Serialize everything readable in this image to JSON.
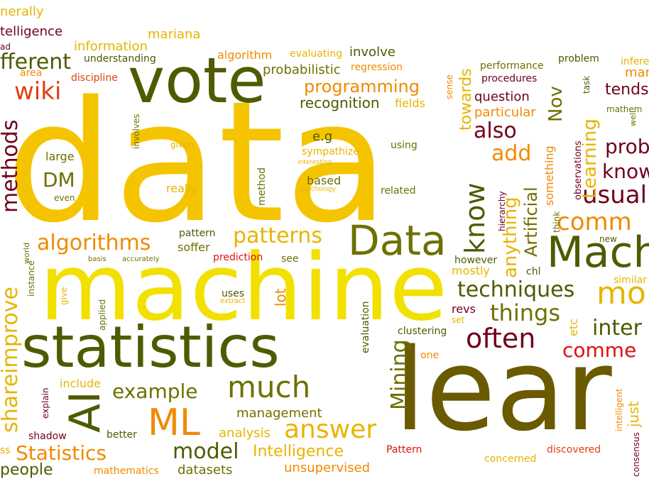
{
  "colors": {
    "yellow": "#f5c400",
    "bright_yellow": "#f2e000",
    "gold": "#e8b400",
    "orange": "#f08a00",
    "dark_orange": "#e06000",
    "red_orange": "#e04010",
    "olive": "#6e7000",
    "dark_olive": "#505a00",
    "brown": "#6a5a00",
    "maroon": "#70001c",
    "red": "#e01010"
  },
  "words": [
    {
      "id": "data",
      "text": "data"
    },
    {
      "id": "machine",
      "text": "machine"
    },
    {
      "id": "statistics",
      "text": "statistics"
    },
    {
      "id": "lear",
      "text": "lear"
    },
    {
      "id": "vote",
      "text": "vote"
    },
    {
      "id": "data2",
      "text": "Data"
    },
    {
      "id": "mach",
      "text": "Mach"
    },
    {
      "id": "ml",
      "text": "ML"
    },
    {
      "id": "ai",
      "text": "AI"
    },
    {
      "id": "much",
      "text": "much"
    },
    {
      "id": "answer",
      "text": "answer"
    },
    {
      "id": "patterns",
      "text": "patterns"
    },
    {
      "id": "algorithms",
      "text": "algorithms"
    },
    {
      "id": "techniques",
      "text": "techniques"
    },
    {
      "id": "often",
      "text": "often"
    },
    {
      "id": "things",
      "text": "things"
    },
    {
      "id": "example",
      "text": "example"
    },
    {
      "id": "model",
      "text": "model"
    },
    {
      "id": "mining",
      "text": "Mining"
    },
    {
      "id": "know",
      "text": "know"
    },
    {
      "id": "programming",
      "text": "programming"
    },
    {
      "id": "wiki",
      "text": "wiki"
    },
    {
      "id": "different",
      "text": "fferent"
    },
    {
      "id": "shareimprove",
      "text": "shareimprove"
    },
    {
      "id": "methods",
      "text": "methods"
    },
    {
      "id": "statistics2",
      "text": "Statistics"
    },
    {
      "id": "intelligence",
      "text": "Intelligence"
    },
    {
      "id": "people",
      "text": "people"
    },
    {
      "id": "unsupervised",
      "text": "unsupervised"
    },
    {
      "id": "datasets",
      "text": "datasets"
    },
    {
      "id": "mathematics",
      "text": "mathematics"
    },
    {
      "id": "management",
      "text": "management"
    },
    {
      "id": "analysis",
      "text": "analysis"
    },
    {
      "id": "dm",
      "text": "DM"
    },
    {
      "id": "add",
      "text": "add"
    },
    {
      "id": "also",
      "text": "also"
    },
    {
      "id": "usual",
      "text": "usual"
    },
    {
      "id": "comm",
      "text": "comm"
    },
    {
      "id": "comme",
      "text": "comme"
    },
    {
      "id": "inter",
      "text": "inter"
    },
    {
      "id": "mo",
      "text": "mo"
    },
    {
      "id": "prob",
      "text": "prob"
    },
    {
      "id": "know2",
      "text": "know"
    },
    {
      "id": "tends",
      "text": "tends"
    },
    {
      "id": "learning",
      "text": "Learning"
    },
    {
      "id": "artificial",
      "text": "Artificial"
    },
    {
      "id": "anything",
      "text": "anything"
    },
    {
      "id": "towards",
      "text": "towards"
    },
    {
      "id": "recognition",
      "text": "recognition"
    },
    {
      "id": "probabilistic",
      "text": "probabilistic"
    },
    {
      "id": "information",
      "text": "information"
    },
    {
      "id": "mariana",
      "text": "mariana"
    },
    {
      "id": "algorithm",
      "text": "algorithm"
    },
    {
      "id": "involve",
      "text": "involve"
    },
    {
      "id": "generally",
      "text": "nerally"
    },
    {
      "id": "intelligence2",
      "text": "telligence"
    },
    {
      "id": "question",
      "text": "question"
    },
    {
      "id": "particular",
      "text": "particular"
    },
    {
      "id": "nov",
      "text": "Nov"
    },
    {
      "id": "revs",
      "text": "revs"
    },
    {
      "id": "include",
      "text": "include"
    },
    {
      "id": "lot",
      "text": "lot"
    },
    {
      "id": "uses",
      "text": "uses"
    },
    {
      "id": "soffer",
      "text": "soffer"
    },
    {
      "id": "pattern",
      "text": "pattern"
    },
    {
      "id": "really",
      "text": "really"
    },
    {
      "id": "large",
      "text": "large"
    },
    {
      "id": "eg",
      "text": "e.g"
    },
    {
      "id": "based",
      "text": "based"
    },
    {
      "id": "related",
      "text": "related"
    },
    {
      "id": "using",
      "text": "using"
    },
    {
      "id": "method",
      "text": "method"
    },
    {
      "id": "sympathize",
      "text": "sympathize"
    },
    {
      "id": "fields",
      "text": "fields"
    },
    {
      "id": "given",
      "text": "given"
    },
    {
      "id": "involves",
      "text": "involves"
    },
    {
      "id": "even",
      "text": "even"
    },
    {
      "id": "interesting",
      "text": "interesting"
    },
    {
      "id": "psychology",
      "text": "psychology"
    },
    {
      "id": "evaluating",
      "text": "evaluating"
    },
    {
      "id": "regression",
      "text": "regression"
    },
    {
      "id": "understanding",
      "text": "understanding"
    },
    {
      "id": "discipline",
      "text": "discipline"
    },
    {
      "id": "area",
      "text": "area"
    },
    {
      "id": "sense",
      "text": "sense"
    },
    {
      "id": "performance",
      "text": "performance"
    },
    {
      "id": "procedures",
      "text": "procedures"
    },
    {
      "id": "problem",
      "text": "problem"
    },
    {
      "id": "task",
      "text": "task"
    },
    {
      "id": "infer",
      "text": "infere"
    },
    {
      "id": "mar",
      "text": "mar"
    },
    {
      "id": "mathem",
      "text": "mathem"
    },
    {
      "id": "well",
      "text": "well"
    },
    {
      "id": "something",
      "text": "something"
    },
    {
      "id": "observations",
      "text": "observations"
    },
    {
      "id": "hierarchy",
      "text": "hierarchy"
    },
    {
      "id": "think",
      "text": "think"
    },
    {
      "id": "new",
      "text": "new"
    },
    {
      "id": "similar",
      "text": "similar"
    },
    {
      "id": "however",
      "text": "however"
    },
    {
      "id": "mostly",
      "text": "mostly"
    },
    {
      "id": "chl",
      "text": "chl"
    },
    {
      "id": "etc",
      "text": "etc"
    },
    {
      "id": "set",
      "text": "set"
    },
    {
      "id": "clustering",
      "text": "clustering"
    },
    {
      "id": "one",
      "text": "one"
    },
    {
      "id": "evaluation",
      "text": "evaluation"
    },
    {
      "id": "pattern2",
      "text": "Pattern"
    },
    {
      "id": "concerned",
      "text": "concerned"
    },
    {
      "id": "discovered",
      "text": "discovered"
    },
    {
      "id": "intelligent",
      "text": "intelligent"
    },
    {
      "id": "just",
      "text": "just"
    },
    {
      "id": "consensus",
      "text": "consensus"
    },
    {
      "id": "better",
      "text": "better"
    },
    {
      "id": "shadow",
      "text": "shadow"
    },
    {
      "id": "explain",
      "text": "explain"
    },
    {
      "id": "ss",
      "text": "ss"
    },
    {
      "id": "prediction",
      "text": "prediction"
    },
    {
      "id": "see",
      "text": "see"
    },
    {
      "id": "basis",
      "text": "basis"
    },
    {
      "id": "accurately",
      "text": "accurately"
    },
    {
      "id": "world",
      "text": "world"
    },
    {
      "id": "instance",
      "text": "instance"
    },
    {
      "id": "give",
      "text": "give"
    },
    {
      "id": "applied",
      "text": "applied"
    },
    {
      "id": "extract",
      "text": "extract"
    },
    {
      "id": "ad",
      "text": "ad"
    }
  ]
}
